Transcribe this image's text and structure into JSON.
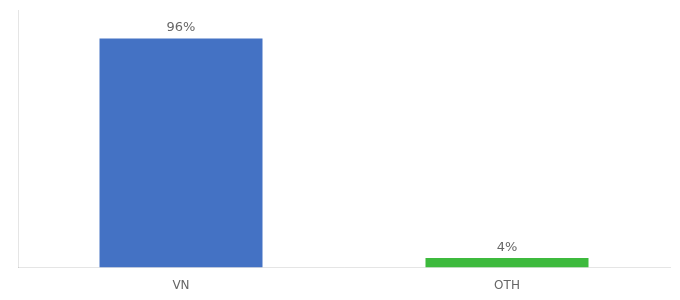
{
  "chart_data": {
    "type": "bar",
    "categories": [
      "VN",
      "OTH"
    ],
    "values": [
      96,
      4
    ],
    "value_labels": [
      "96%",
      "4%"
    ],
    "colors": [
      "#4472c4",
      "#3dba3d"
    ],
    "ylim": [
      0,
      108
    ],
    "grid": false,
    "data_labels": true,
    "tick_labels": "x"
  }
}
